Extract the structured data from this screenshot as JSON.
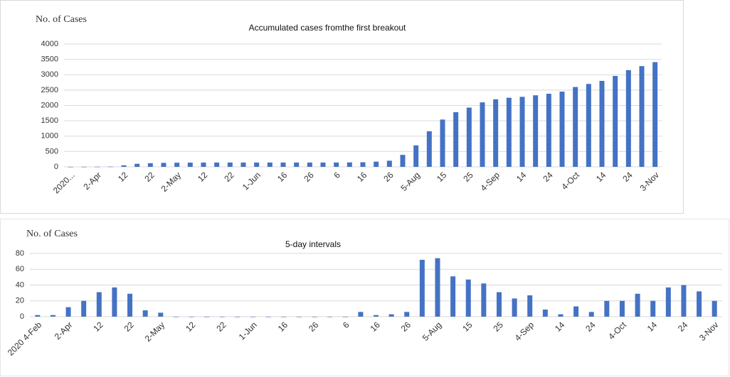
{
  "chart_data": [
    {
      "type": "bar",
      "title": "Accumulated cases fromthe first  breakout",
      "y_label": "No. of Cases",
      "categories": [
        "2020...",
        null,
        "2-Apr",
        null,
        "12",
        null,
        "22",
        null,
        "2-May",
        null,
        "12",
        null,
        "22",
        null,
        "1-Jun",
        null,
        "16",
        null,
        "26",
        null,
        "6",
        null,
        "16",
        null,
        "26",
        null,
        "5-Aug",
        null,
        "15",
        null,
        "25",
        null,
        "4-Sep",
        null,
        "14",
        null,
        "24",
        null,
        "4-Oct",
        null,
        "14",
        null,
        "24",
        null,
        "3-Nov"
      ],
      "values": [
        2,
        3,
        5,
        8,
        50,
        100,
        120,
        130,
        135,
        138,
        140,
        140,
        140,
        140,
        140,
        140,
        140,
        140,
        140,
        140,
        142,
        145,
        150,
        170,
        200,
        390,
        700,
        1160,
        1540,
        1780,
        1930,
        2100,
        2200,
        2250,
        2280,
        2330,
        2380,
        2450,
        2600,
        2700,
        2800,
        2960,
        3150,
        3280,
        3410
      ],
      "color": "#4472c4",
      "ylim": [
        0,
        4000
      ],
      "yticks": [
        0,
        500,
        1000,
        1500,
        2000,
        2500,
        3000,
        3500,
        4000
      ],
      "grid": true
    },
    {
      "type": "bar",
      "title": "5-day intervals",
      "y_label": "No. of Cases",
      "categories": [
        "2020 4-Feb",
        null,
        "2-Apr",
        null,
        "12",
        null,
        "22",
        null,
        "2-May",
        null,
        "12",
        null,
        "22",
        null,
        "1-Jun",
        null,
        "16",
        null,
        "26",
        null,
        "6",
        null,
        "16",
        null,
        "26",
        null,
        "5-Aug",
        null,
        "15",
        null,
        "25",
        null,
        "4-Sep",
        null,
        "14",
        null,
        "24",
        null,
        "4-Oct",
        null,
        "14",
        null,
        "24",
        null,
        "3-Nov"
      ],
      "values": [
        2,
        2,
        12,
        20,
        31,
        37,
        29,
        8,
        5,
        0,
        0,
        0,
        0,
        0,
        0,
        0,
        0,
        0,
        0,
        0,
        0,
        6,
        2,
        3,
        6,
        72,
        74,
        51,
        47,
        42,
        31,
        23,
        27,
        9,
        3,
        13,
        6,
        20,
        20,
        29,
        20,
        37,
        40,
        32,
        20
      ],
      "color": "#4472c4",
      "ylim": [
        0,
        80
      ],
      "yticks": [
        0,
        20,
        40,
        60,
        80
      ],
      "grid": true
    }
  ]
}
